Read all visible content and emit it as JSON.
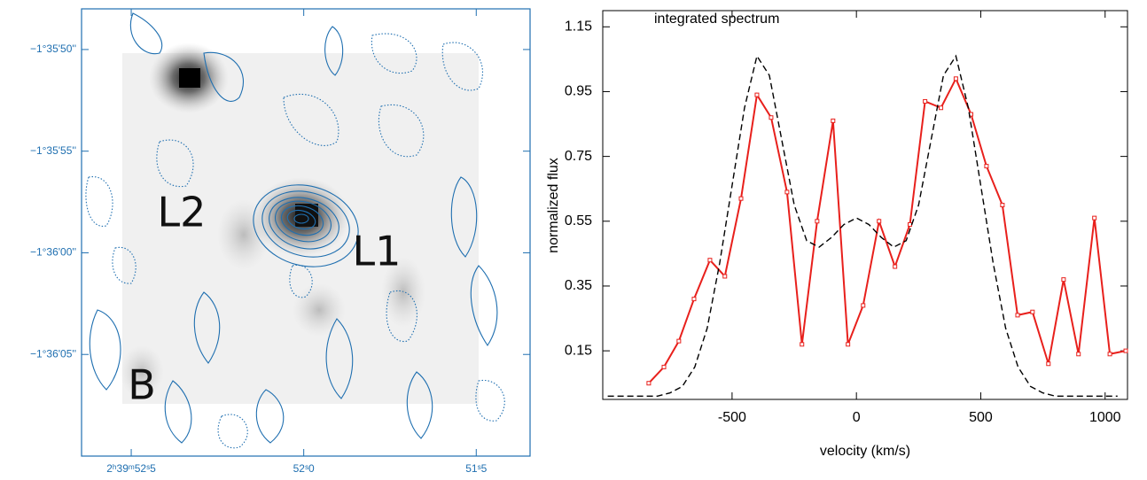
{
  "chart_data": [
    {
      "type": "image",
      "xlim": [
        9592.644,
        9591.344
      ],
      "ylim": [
        -5770,
        -5748
      ],
      "xticks": [
        {
          "value": 9592.5,
          "label": "2ʰ39ᵐ52ˢ5"
        },
        {
          "value": 9592.0,
          "label": "52ˢ0"
        },
        {
          "value": 9591.5,
          "label": "51ˢ5"
        }
      ],
      "yticks": [
        {
          "value": -5750,
          "label": "−1°35'50''"
        },
        {
          "value": -5755,
          "label": "−1°35'55''"
        },
        {
          "value": -5760,
          "label": "−1°36'00''"
        },
        {
          "value": -5765,
          "label": "−1°36'05''"
        }
      ],
      "annotations": [
        "L2",
        "L1",
        "B"
      ]
    },
    {
      "type": "line",
      "annotation": "integrated spectrum",
      "x_label": "velocity (km/s)",
      "y_label": "normalized flux",
      "xlim": [
        -1020,
        1090
      ],
      "ylim": [
        0,
        1.2
      ],
      "xticks": [
        -500,
        0,
        500,
        1000
      ],
      "yticks": [
        0.15,
        0.35,
        0.55,
        0.75,
        0.95,
        1.15
      ],
      "series": [
        {
          "color": "#e8201c",
          "style": "solid",
          "markers": true,
          "x": [
            -835,
            -774,
            -714,
            -653,
            -589,
            -529,
            -464,
            -400,
            -343,
            -279,
            -219,
            -158,
            -94,
            -34,
            27,
            91,
            155,
            215,
            276,
            340,
            400,
            461,
            523,
            587,
            648,
            708,
            772,
            833,
            893,
            957,
            1019,
            1083
          ],
          "values": [
            0.05,
            0.1,
            0.18,
            0.31,
            0.43,
            0.38,
            0.62,
            0.94,
            0.87,
            0.64,
            0.17,
            0.55,
            0.86,
            0.17,
            0.29,
            0.55,
            0.41,
            0.54,
            0.92,
            0.9,
            0.99,
            0.88,
            0.72,
            0.6,
            0.26,
            0.27,
            0.11,
            0.37,
            0.14,
            0.56,
            0.14,
            0.15
          ]
        },
        {
          "color": "#000000",
          "style": "dashed",
          "markers": false,
          "x": [
            -1000,
            -950,
            -900,
            -850,
            -800,
            -750,
            -700,
            -650,
            -600,
            -550,
            -500,
            -450,
            -400,
            -350,
            -300,
            -250,
            -200,
            -150,
            -100,
            -50,
            0,
            50,
            100,
            150,
            200,
            250,
            300,
            350,
            400,
            450,
            500,
            550,
            600,
            650,
            700,
            750,
            800,
            850,
            900,
            950,
            1000,
            1050
          ],
          "values": [
            0.01,
            0.01,
            0.01,
            0.01,
            0.01,
            0.02,
            0.04,
            0.1,
            0.22,
            0.42,
            0.66,
            0.9,
            1.06,
            1.0,
            0.8,
            0.6,
            0.49,
            0.47,
            0.5,
            0.54,
            0.56,
            0.54,
            0.5,
            0.47,
            0.49,
            0.6,
            0.8,
            1.0,
            1.06,
            0.9,
            0.66,
            0.42,
            0.22,
            0.1,
            0.04,
            0.02,
            0.01,
            0.01,
            0.01,
            0.01,
            0.01,
            0.01
          ]
        }
      ]
    }
  ]
}
